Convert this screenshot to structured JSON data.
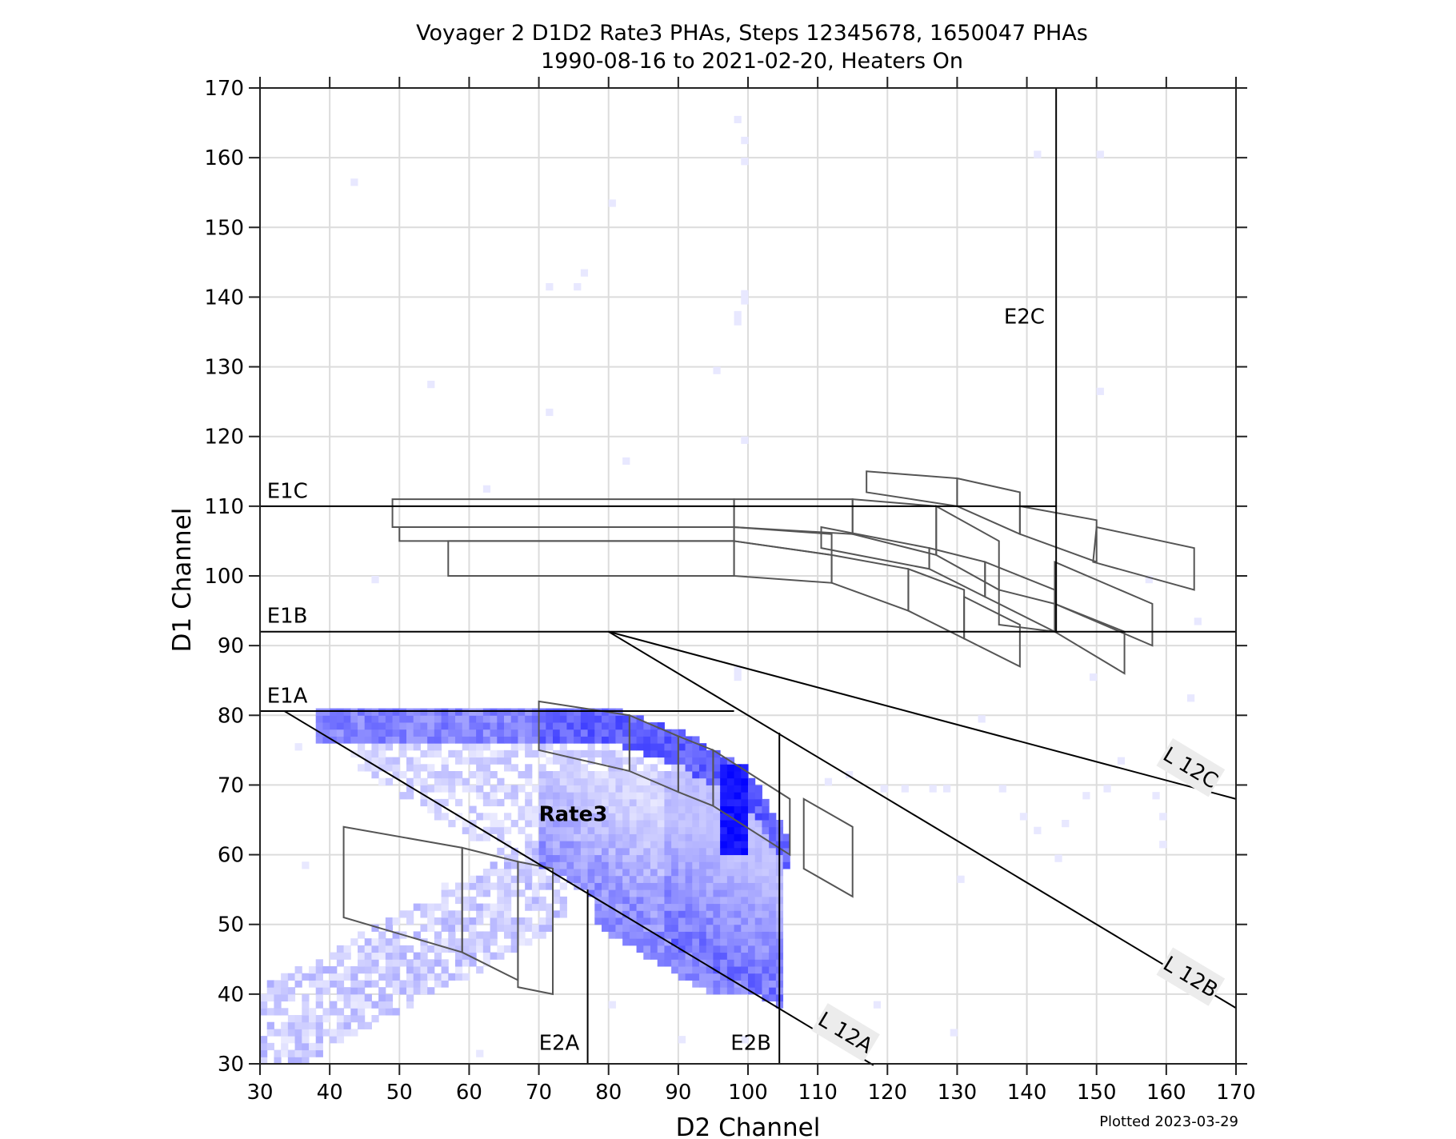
{
  "chart_data": {
    "type": "heatmap",
    "title": "Voyager 2 D1D2 Rate3 PHAs, Steps 12345678, 1650047 PHAs",
    "subtitle": "1990-08-16 to 2021-02-20, Heaters On",
    "xlabel": "D2 Channel",
    "ylabel": "D1 Channel",
    "xlim": [
      30,
      170
    ],
    "ylim": [
      30,
      170
    ],
    "xticks": [
      30,
      40,
      50,
      60,
      70,
      80,
      90,
      100,
      110,
      120,
      130,
      140,
      150,
      160,
      170
    ],
    "yticks": [
      30,
      40,
      50,
      60,
      70,
      80,
      90,
      100,
      110,
      120,
      130,
      140,
      150,
      160,
      170
    ],
    "grid": true,
    "bin_size": 1,
    "colormap": [
      "#ffffff",
      "#0000ff"
    ],
    "footer": "Plotted 2023-03-29",
    "thresholds": {
      "E1A": 80.6,
      "E1B": 92,
      "E1C": 110,
      "E2A": 77,
      "E2B": 104.5,
      "E2C": 144.2
    },
    "annotations": [
      {
        "text": "E1C",
        "x": 31,
        "y": 111.2,
        "bold": false
      },
      {
        "text": "E1B",
        "x": 31,
        "y": 93.2,
        "bold": false
      },
      {
        "text": "E1A",
        "x": 31,
        "y": 81.8,
        "bold": false
      },
      {
        "text": "E2C",
        "x": 136.7,
        "y": 136.5,
        "bold": false
      },
      {
        "text": "E2A",
        "x": 70,
        "y": 32,
        "bold": false
      },
      {
        "text": "E2B",
        "x": 97.5,
        "y": 32,
        "bold": false
      },
      {
        "text": "Rate3",
        "x": 70,
        "y": 65,
        "bold": true
      }
    ],
    "lines": [
      {
        "name": "L 12A",
        "points": [
          [
            33.5,
            80.6
          ],
          [
            118,
            29.8
          ]
        ],
        "label_at": [
          114.5,
          34.3
        ],
        "angle": 31
      },
      {
        "name": "L 12B",
        "points": [
          [
            80,
            92
          ],
          [
            170,
            38
          ]
        ],
        "label_at": [
          164.5,
          42
        ],
        "angle": 31
      },
      {
        "name": "L 12C",
        "points": [
          [
            80,
            92
          ],
          [
            170,
            68
          ]
        ],
        "label_at": [
          164.5,
          71.5
        ],
        "angle": 31
      }
    ],
    "density_bands": [
      {
        "name": "E1A-top-band",
        "x": [
          38,
          106
        ],
        "y_top": [
          81,
          81,
          81,
          78,
          72,
          62
        ],
        "x_knots": [
          38,
          60,
          80,
          90,
          100,
          106
        ],
        "thickness": 5,
        "intensity": 0.55
      },
      {
        "name": "peak",
        "x": [
          96,
          100
        ],
        "y": [
          60,
          73
        ],
        "intensity": 1.0
      },
      {
        "name": "lower-triangle",
        "x": [
          70,
          105
        ],
        "y_range_fn": "L12A-to-72",
        "intensity": 0.45
      },
      {
        "name": "low-tail",
        "x": [
          30,
          72
        ],
        "y_center_from": [
          34,
          58
        ],
        "thickness": 10,
        "intensity": 0.2
      },
      {
        "name": "diffuse-mid",
        "x": [
          40,
          96
        ],
        "y": [
          56,
          78
        ],
        "intensity": 0.12
      }
    ],
    "sparse_points": [
      [
        43,
        156
      ],
      [
        98,
        165
      ],
      [
        99,
        162
      ],
      [
        99,
        159
      ],
      [
        80,
        153
      ],
      [
        76,
        143
      ],
      [
        75,
        141
      ],
      [
        71,
        141
      ],
      [
        99,
        140
      ],
      [
        99,
        139
      ],
      [
        98,
        137
      ],
      [
        98,
        136
      ],
      [
        95,
        129
      ],
      [
        54,
        127
      ],
      [
        150,
        126
      ],
      [
        71,
        123
      ],
      [
        99,
        119
      ],
      [
        82,
        116
      ],
      [
        62,
        112
      ],
      [
        141,
        160
      ],
      [
        150,
        160
      ],
      [
        46,
        99
      ],
      [
        157,
        99
      ],
      [
        98,
        86
      ],
      [
        98,
        85
      ],
      [
        149,
        85
      ],
      [
        163,
        82
      ],
      [
        133,
        79
      ],
      [
        153,
        73
      ],
      [
        151,
        69
      ],
      [
        126,
        69
      ],
      [
        128,
        69
      ],
      [
        119,
        69
      ],
      [
        122,
        69
      ],
      [
        136,
        69
      ],
      [
        111,
        70
      ],
      [
        114,
        71
      ],
      [
        148,
        68
      ],
      [
        158,
        68
      ],
      [
        159,
        65
      ],
      [
        139,
        65
      ],
      [
        145,
        64
      ],
      [
        141,
        63
      ],
      [
        144,
        59
      ],
      [
        159,
        61
      ],
      [
        130,
        56
      ],
      [
        80,
        38
      ],
      [
        118,
        38
      ],
      [
        129,
        34
      ],
      [
        61,
        31
      ],
      [
        99,
        33
      ],
      [
        90,
        33
      ],
      [
        56,
        55
      ],
      [
        52,
        42
      ],
      [
        36,
        58
      ],
      [
        35,
        75
      ],
      [
        164,
        93
      ]
    ]
  },
  "plot_boxes": [
    {
      "group": "E1C",
      "polys": [
        [
          [
            49,
            111
          ],
          [
            98,
            111
          ],
          [
            98,
            107
          ],
          [
            49,
            107
          ]
        ],
        [
          [
            98,
            111
          ],
          [
            115,
            111
          ],
          [
            115,
            106
          ],
          [
            98,
            107
          ]
        ],
        [
          [
            50,
            107
          ],
          [
            98,
            107
          ],
          [
            98,
            105
          ],
          [
            50,
            105
          ]
        ],
        [
          [
            57,
            105
          ],
          [
            98,
            105
          ],
          [
            98,
            100
          ],
          [
            57,
            100
          ]
        ],
        [
          [
            98,
            105
          ],
          [
            112,
            103
          ],
          [
            112,
            99
          ],
          [
            98,
            100
          ]
        ],
        [
          [
            98,
            107
          ],
          [
            112,
            106
          ],
          [
            112,
            103
          ],
          [
            98,
            105
          ]
        ],
        [
          [
            117,
            115
          ],
          [
            130,
            114
          ],
          [
            130,
            110
          ],
          [
            117,
            112
          ]
        ],
        [
          [
            130,
            114
          ],
          [
            139,
            112
          ],
          [
            139,
            106
          ],
          [
            130,
            110
          ]
        ],
        [
          [
            115,
            111
          ],
          [
            127,
            110
          ],
          [
            127,
            103
          ],
          [
            115,
            106
          ]
        ],
        [
          [
            110.5,
            107
          ],
          [
            126,
            104
          ],
          [
            126,
            101
          ],
          [
            110.5,
            104
          ]
        ],
        [
          [
            127,
            110
          ],
          [
            136,
            105
          ],
          [
            136,
            98
          ],
          [
            127,
            103
          ]
        ],
        [
          [
            139,
            110
          ],
          [
            150,
            108
          ],
          [
            150,
            102
          ],
          [
            139,
            106
          ]
        ],
        [
          [
            150,
            107
          ],
          [
            164,
            104
          ],
          [
            164,
            98
          ],
          [
            149.5,
            102
          ]
        ],
        [
          [
            126,
            104
          ],
          [
            134,
            102
          ],
          [
            134,
            97
          ],
          [
            126,
            101
          ]
        ],
        [
          [
            134,
            102
          ],
          [
            144,
            98
          ],
          [
            144,
            92
          ],
          [
            134,
            97
          ]
        ],
        [
          [
            112,
            103
          ],
          [
            123,
            101
          ],
          [
            123,
            95
          ],
          [
            112,
            99
          ]
        ],
        [
          [
            123,
            101
          ],
          [
            131,
            98
          ],
          [
            131,
            91
          ],
          [
            123,
            95
          ]
        ],
        [
          [
            131,
            97
          ],
          [
            139,
            93
          ],
          [
            139,
            87
          ],
          [
            131,
            91
          ]
        ],
        [
          [
            136,
            98
          ],
          [
            144,
            96
          ],
          [
            144,
            92
          ],
          [
            136,
            93
          ]
        ],
        [
          [
            144,
            102
          ],
          [
            158,
            96
          ],
          [
            158,
            90
          ],
          [
            144,
            96
          ]
        ],
        [
          [
            144,
            96
          ],
          [
            154,
            92
          ],
          [
            154,
            86
          ],
          [
            144,
            92
          ]
        ]
      ]
    },
    {
      "group": "E1A",
      "polys": [
        [
          [
            70,
            82
          ],
          [
            83,
            80
          ],
          [
            83,
            72
          ],
          [
            70,
            75
          ]
        ],
        [
          [
            83,
            80
          ],
          [
            90,
            77
          ],
          [
            90,
            69
          ],
          [
            83,
            72
          ]
        ],
        [
          [
            90,
            77
          ],
          [
            95,
            75
          ],
          [
            95,
            67
          ],
          [
            90,
            69
          ]
        ],
        [
          [
            95,
            75
          ],
          [
            106,
            68
          ],
          [
            106,
            60
          ],
          [
            95,
            67
          ]
        ],
        [
          [
            108,
            68
          ],
          [
            115,
            64
          ],
          [
            115,
            54
          ],
          [
            108,
            58
          ]
        ]
      ]
    },
    {
      "group": "low",
      "polys": [
        [
          [
            42,
            64
          ],
          [
            59,
            61
          ],
          [
            59,
            46
          ],
          [
            42,
            51
          ]
        ],
        [
          [
            59,
            61
          ],
          [
            67,
            59
          ],
          [
            67,
            42
          ],
          [
            59,
            46
          ]
        ],
        [
          [
            67,
            59
          ],
          [
            72,
            58
          ],
          [
            72,
            40
          ],
          [
            67,
            41
          ]
        ]
      ]
    }
  ],
  "labels": {
    "title_line1": "Voyager 2 D1D2 Rate3 PHAs, Steps 12345678, 1650047 PHAs",
    "title_line2": "1990-08-16 to 2021-02-20, Heaters On",
    "xlabel": "D2 Channel",
    "ylabel": "D1 Channel",
    "footer": "Plotted 2023-03-29",
    "e1c": "E1C",
    "e1b": "E1B",
    "e1a": "E1A",
    "e2a": "E2A",
    "e2b": "E2B",
    "e2c": "E2C",
    "rate3": "Rate3",
    "l12a": "L 12A",
    "l12b": "L 12B",
    "l12c": "L 12C"
  }
}
